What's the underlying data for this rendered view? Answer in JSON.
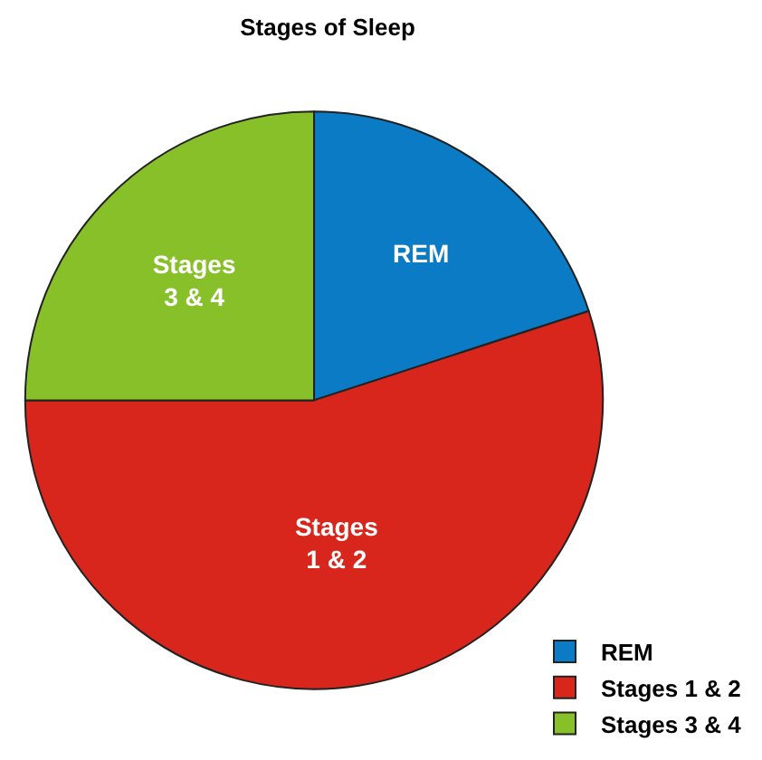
{
  "chart_data": {
    "type": "pie",
    "title": "Stages of Sleep",
    "categories": [
      "REM",
      "Stages 1 & 2",
      "Stages 3 & 4"
    ],
    "values": [
      20,
      55,
      25
    ],
    "colors": [
      "#0a7bc4",
      "#d9261c",
      "#88c02a"
    ],
    "legend": "bottom right"
  }
}
